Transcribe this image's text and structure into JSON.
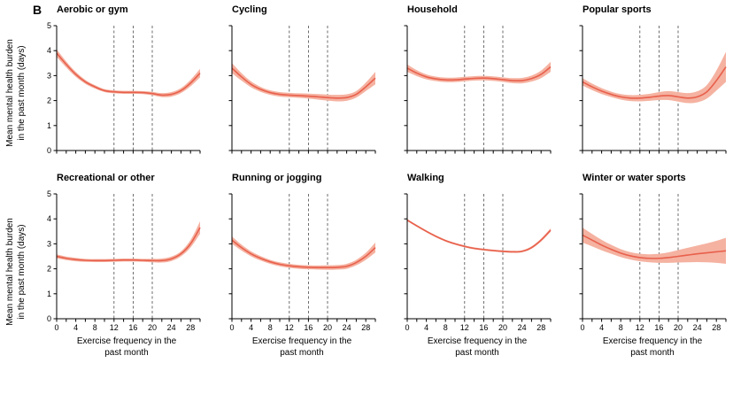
{
  "figure": {
    "label": "B",
    "ylabel": "Mean mental health burden\nin the past month (days)",
    "xlabel_line1": "Exercise frequency in the",
    "xlabel_line2": "past month",
    "colors": {
      "line": "#e8604c",
      "band": "#f5b2a1",
      "dashed": "#4a4a4a",
      "axis": "#000000"
    }
  },
  "chart_data": [
    {
      "type": "line",
      "title": "Aerobic or gym",
      "xlabel": "Exercise frequency in the past month",
      "ylabel": "Mean mental health burden in the past month (days)",
      "xlim": [
        0,
        30
      ],
      "ylim": [
        0,
        5
      ],
      "xticks": [
        0,
        4,
        8,
        12,
        16,
        20,
        24,
        28
      ],
      "yticks": [
        0,
        1,
        2,
        3,
        4,
        5
      ],
      "dashed_x": [
        12,
        16,
        20
      ],
      "x": [
        0,
        2,
        4,
        6,
        8,
        10,
        12,
        14,
        16,
        18,
        20,
        22,
        24,
        26,
        28,
        30
      ],
      "y": [
        3.9,
        3.45,
        3.05,
        2.75,
        2.55,
        2.4,
        2.35,
        2.33,
        2.33,
        2.32,
        2.28,
        2.22,
        2.25,
        2.4,
        2.7,
        3.1
      ],
      "lower": [
        3.75,
        3.33,
        2.95,
        2.67,
        2.48,
        2.34,
        2.29,
        2.27,
        2.27,
        2.26,
        2.21,
        2.14,
        2.16,
        2.3,
        2.57,
        2.93
      ],
      "upper": [
        4.05,
        3.57,
        3.15,
        2.83,
        2.62,
        2.46,
        2.41,
        2.39,
        2.39,
        2.38,
        2.35,
        2.3,
        2.34,
        2.5,
        2.83,
        3.27
      ]
    },
    {
      "type": "line",
      "title": "Cycling",
      "xlabel": "Exercise frequency in the past month",
      "ylabel": "Mean mental health burden in the past month (days)",
      "xlim": [
        0,
        30
      ],
      "ylim": [
        0,
        5
      ],
      "xticks": [
        0,
        4,
        8,
        12,
        16,
        20,
        24,
        28
      ],
      "yticks": [
        0,
        1,
        2,
        3,
        4,
        5
      ],
      "dashed_x": [
        12,
        16,
        20
      ],
      "x": [
        0,
        2,
        4,
        6,
        8,
        10,
        12,
        14,
        16,
        18,
        20,
        22,
        24,
        26,
        28,
        30
      ],
      "y": [
        3.3,
        2.95,
        2.65,
        2.45,
        2.32,
        2.25,
        2.22,
        2.2,
        2.18,
        2.15,
        2.12,
        2.1,
        2.12,
        2.25,
        2.55,
        2.9
      ],
      "lower": [
        3.1,
        2.8,
        2.53,
        2.35,
        2.23,
        2.16,
        2.13,
        2.11,
        2.08,
        2.04,
        2.0,
        1.97,
        1.99,
        2.12,
        2.38,
        2.65
      ],
      "upper": [
        3.5,
        3.1,
        2.77,
        2.55,
        2.41,
        2.34,
        2.31,
        2.29,
        2.28,
        2.26,
        2.24,
        2.23,
        2.25,
        2.38,
        2.72,
        3.15
      ]
    },
    {
      "type": "line",
      "title": "Household",
      "xlabel": "Exercise frequency in the past month",
      "ylabel": "Mean mental health burden in the past month (days)",
      "xlim": [
        0,
        30
      ],
      "ylim": [
        0,
        5
      ],
      "xticks": [
        0,
        4,
        8,
        12,
        16,
        20,
        24,
        28
      ],
      "yticks": [
        0,
        1,
        2,
        3,
        4,
        5
      ],
      "dashed_x": [
        12,
        16,
        20
      ],
      "x": [
        0,
        2,
        4,
        6,
        8,
        10,
        12,
        14,
        16,
        18,
        20,
        22,
        24,
        26,
        28,
        30
      ],
      "y": [
        3.3,
        3.1,
        2.95,
        2.87,
        2.83,
        2.83,
        2.86,
        2.89,
        2.9,
        2.88,
        2.84,
        2.8,
        2.8,
        2.88,
        3.05,
        3.35
      ],
      "lower": [
        3.15,
        2.98,
        2.85,
        2.78,
        2.74,
        2.74,
        2.77,
        2.8,
        2.81,
        2.79,
        2.75,
        2.7,
        2.69,
        2.76,
        2.9,
        3.15
      ],
      "upper": [
        3.45,
        3.22,
        3.05,
        2.96,
        2.92,
        2.92,
        2.95,
        2.98,
        2.99,
        2.97,
        2.93,
        2.9,
        2.91,
        3.0,
        3.2,
        3.55
      ]
    },
    {
      "type": "line",
      "title": "Popular sports",
      "xlabel": "Exercise frequency in the past month",
      "ylabel": "Mean mental health burden in the past month (days)",
      "xlim": [
        0,
        30
      ],
      "ylim": [
        0,
        5
      ],
      "xticks": [
        0,
        4,
        8,
        12,
        16,
        20,
        24,
        28
      ],
      "yticks": [
        0,
        1,
        2,
        3,
        4,
        5
      ],
      "dashed_x": [
        12,
        16,
        20
      ],
      "x": [
        0,
        2,
        4,
        6,
        8,
        10,
        12,
        14,
        16,
        18,
        20,
        22,
        24,
        26,
        28,
        30
      ],
      "y": [
        2.75,
        2.55,
        2.38,
        2.25,
        2.15,
        2.1,
        2.1,
        2.13,
        2.18,
        2.2,
        2.15,
        2.1,
        2.15,
        2.35,
        2.8,
        3.35
      ],
      "lower": [
        2.6,
        2.42,
        2.26,
        2.14,
        2.04,
        1.98,
        1.97,
        1.99,
        2.02,
        2.02,
        1.96,
        1.9,
        1.93,
        2.08,
        2.4,
        2.75
      ],
      "upper": [
        2.9,
        2.68,
        2.5,
        2.36,
        2.26,
        2.22,
        2.23,
        2.27,
        2.34,
        2.38,
        2.34,
        2.3,
        2.37,
        2.62,
        3.2,
        3.95
      ]
    },
    {
      "type": "line",
      "title": "Recreational or other",
      "xlabel": "Exercise frequency in the past month",
      "ylabel": "Mean mental health burden in the past month (days)",
      "xlim": [
        0,
        30
      ],
      "ylim": [
        0,
        5
      ],
      "xticks": [
        0,
        4,
        8,
        12,
        16,
        20,
        24,
        28
      ],
      "yticks": [
        0,
        1,
        2,
        3,
        4,
        5
      ],
      "dashed_x": [
        12,
        16,
        20
      ],
      "x": [
        0,
        2,
        4,
        6,
        8,
        10,
        12,
        14,
        16,
        18,
        20,
        22,
        24,
        26,
        28,
        30
      ],
      "y": [
        2.5,
        2.42,
        2.37,
        2.34,
        2.33,
        2.33,
        2.34,
        2.35,
        2.35,
        2.34,
        2.33,
        2.33,
        2.4,
        2.6,
        3.0,
        3.65
      ],
      "lower": [
        2.42,
        2.35,
        2.3,
        2.28,
        2.27,
        2.27,
        2.28,
        2.29,
        2.29,
        2.28,
        2.26,
        2.25,
        2.31,
        2.5,
        2.85,
        3.4
      ],
      "upper": [
        2.58,
        2.49,
        2.44,
        2.4,
        2.39,
        2.39,
        2.4,
        2.41,
        2.41,
        2.4,
        2.4,
        2.41,
        2.49,
        2.7,
        3.15,
        3.9
      ]
    },
    {
      "type": "line",
      "title": "Running or jogging",
      "xlabel": "Exercise frequency in the past month",
      "ylabel": "Mean mental health burden in the past month (days)",
      "xlim": [
        0,
        30
      ],
      "ylim": [
        0,
        5
      ],
      "xticks": [
        0,
        4,
        8,
        12,
        16,
        20,
        24,
        28
      ],
      "yticks": [
        0,
        1,
        2,
        3,
        4,
        5
      ],
      "dashed_x": [
        12,
        16,
        20
      ],
      "x": [
        0,
        2,
        4,
        6,
        8,
        10,
        12,
        14,
        16,
        18,
        20,
        22,
        24,
        26,
        28,
        30
      ],
      "y": [
        3.15,
        2.85,
        2.6,
        2.42,
        2.28,
        2.18,
        2.12,
        2.08,
        2.06,
        2.05,
        2.05,
        2.06,
        2.1,
        2.25,
        2.5,
        2.85
      ],
      "lower": [
        3.0,
        2.73,
        2.5,
        2.33,
        2.2,
        2.1,
        2.04,
        2.0,
        1.98,
        1.97,
        1.96,
        1.97,
        2.0,
        2.14,
        2.36,
        2.65
      ],
      "upper": [
        3.3,
        2.97,
        2.7,
        2.51,
        2.36,
        2.26,
        2.2,
        2.16,
        2.14,
        2.13,
        2.14,
        2.15,
        2.2,
        2.36,
        2.64,
        3.05
      ]
    },
    {
      "type": "line",
      "title": "Walking",
      "xlabel": "Exercise frequency in the past month",
      "ylabel": "Mean mental health burden in the past month (days)",
      "xlim": [
        0,
        30
      ],
      "ylim": [
        0,
        5
      ],
      "xticks": [
        0,
        4,
        8,
        12,
        16,
        20,
        24,
        28
      ],
      "yticks": [
        0,
        1,
        2,
        3,
        4,
        5
      ],
      "dashed_x": [
        12,
        16,
        20
      ],
      "x": [
        0,
        2,
        4,
        6,
        8,
        10,
        12,
        14,
        16,
        18,
        20,
        22,
        24,
        26,
        28,
        30
      ],
      "y": [
        3.95,
        3.72,
        3.5,
        3.3,
        3.13,
        3.0,
        2.9,
        2.82,
        2.77,
        2.73,
        2.7,
        2.68,
        2.7,
        2.85,
        3.15,
        3.55
      ],
      "lower": [
        3.91,
        3.68,
        3.46,
        3.26,
        3.09,
        2.96,
        2.86,
        2.78,
        2.73,
        2.69,
        2.66,
        2.64,
        2.66,
        2.8,
        3.09,
        3.48
      ],
      "upper": [
        3.99,
        3.76,
        3.54,
        3.34,
        3.17,
        3.04,
        2.94,
        2.86,
        2.81,
        2.77,
        2.74,
        2.72,
        2.74,
        2.9,
        3.21,
        3.62
      ]
    },
    {
      "type": "line",
      "title": "Winter or water sports",
      "xlabel": "Exercise frequency in the past month",
      "ylabel": "Mean mental health burden in the past month (days)",
      "xlim": [
        0,
        30
      ],
      "ylim": [
        0,
        5
      ],
      "xticks": [
        0,
        4,
        8,
        12,
        16,
        20,
        24,
        28
      ],
      "yticks": [
        0,
        1,
        2,
        3,
        4,
        5
      ],
      "dashed_x": [
        12,
        16,
        20
      ],
      "x": [
        0,
        2,
        4,
        6,
        8,
        10,
        12,
        14,
        16,
        18,
        20,
        22,
        24,
        26,
        28,
        30
      ],
      "y": [
        3.35,
        3.15,
        2.95,
        2.78,
        2.63,
        2.52,
        2.45,
        2.42,
        2.42,
        2.45,
        2.5,
        2.55,
        2.6,
        2.64,
        2.68,
        2.72
      ],
      "lower": [
        3.05,
        2.9,
        2.74,
        2.6,
        2.47,
        2.37,
        2.3,
        2.26,
        2.24,
        2.24,
        2.25,
        2.26,
        2.27,
        2.26,
        2.24,
        2.2
      ],
      "upper": [
        3.65,
        3.4,
        3.16,
        2.96,
        2.79,
        2.67,
        2.6,
        2.58,
        2.6,
        2.66,
        2.75,
        2.84,
        2.93,
        3.02,
        3.12,
        3.24
      ]
    }
  ]
}
